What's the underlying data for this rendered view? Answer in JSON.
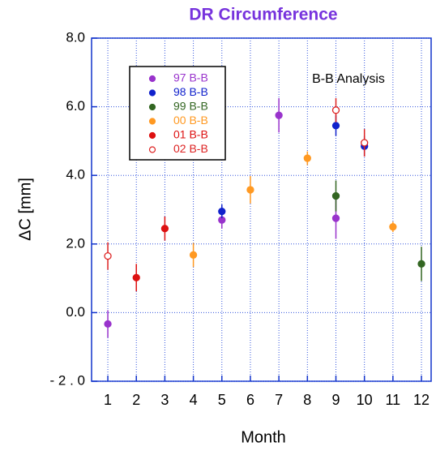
{
  "chart_data": {
    "type": "errorbar-scatter",
    "title": "DR  Circumference",
    "title_color": "#7733dd",
    "annotation": "B-B  Analysis",
    "xlabel": "Month",
    "ylabel": "ΔC  [mm]",
    "xlim": [
      0.43,
      12.34
    ],
    "xticks": [
      1,
      2,
      3,
      4,
      5,
      6,
      7,
      8,
      9,
      10,
      11,
      12
    ],
    "ylim": [
      -2,
      8
    ],
    "yticks": [
      {
        "value": -2,
        "label": "- 2 . 0"
      },
      {
        "value": 0,
        "label": "0.0"
      },
      {
        "value": 2,
        "label": "2.0"
      },
      {
        "value": 4,
        "label": "4.0"
      },
      {
        "value": 6,
        "label": "6.0"
      },
      {
        "value": 8,
        "label": "8.0"
      }
    ],
    "grid": true,
    "legend": "upper left",
    "series": [
      {
        "name": "97  B-B",
        "color": "#9933cc",
        "filled": true,
        "x": [
          1,
          5,
          7,
          9
        ],
        "values": [
          -0.33,
          2.7,
          5.75,
          2.75
        ],
        "errors": [
          0.4,
          0.25,
          0.5,
          0.6
        ]
      },
      {
        "name": "98  B-B",
        "color": "#1122cc",
        "filled": true,
        "x": [
          5,
          9,
          10
        ],
        "values": [
          2.95,
          5.45,
          4.85
        ],
        "errors": [
          0.2,
          0.3,
          0.3
        ]
      },
      {
        "name": "99  B-B",
        "color": "#336622",
        "filled": true,
        "x": [
          9,
          12
        ],
        "values": [
          3.4,
          1.42
        ],
        "errors": [
          0.45,
          0.5
        ]
      },
      {
        "name": "00  B-B",
        "color": "#ff9922",
        "filled": true,
        "x": [
          4,
          6,
          8,
          11
        ],
        "values": [
          1.68,
          3.58,
          4.5,
          2.5
        ],
        "errors": [
          0.35,
          0.4,
          0.2,
          0.15
        ]
      },
      {
        "name": "01  B-B",
        "color": "#dd1111",
        "filled": true,
        "x": [
          2,
          3
        ],
        "values": [
          1.02,
          2.45
        ],
        "errors": [
          0.4,
          0.35
        ]
      },
      {
        "name": "02  B-B",
        "color": "#dd2222",
        "filled": false,
        "x": [
          1,
          9,
          10
        ],
        "values": [
          1.65,
          5.9,
          4.95
        ],
        "errors": [
          0.4,
          0.35,
          0.4
        ]
      }
    ]
  }
}
